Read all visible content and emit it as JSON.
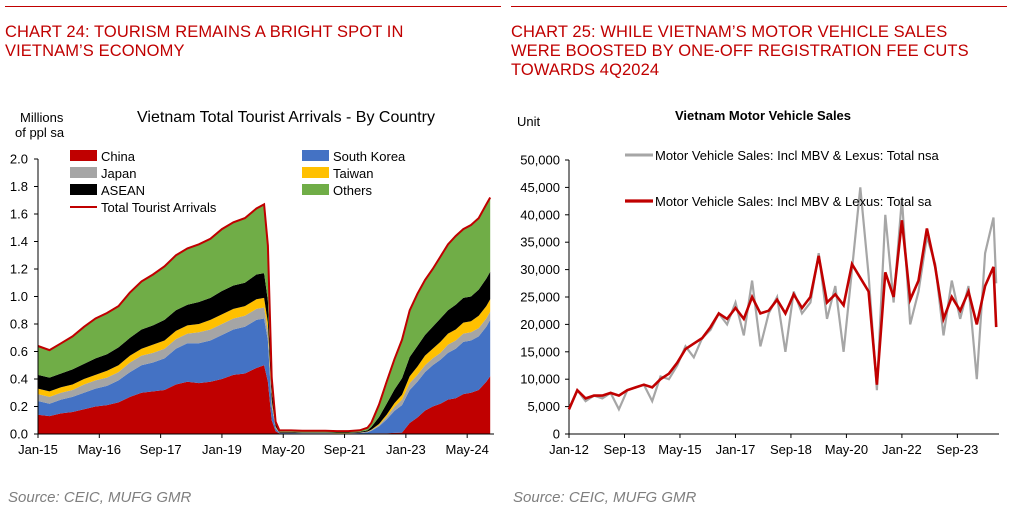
{
  "left_panel": {
    "heading_line1": "CHART 24: TOURISM REMAINS A BRIGHT SPOT IN",
    "heading_line2": "VIETNAM’S ECONOMY",
    "source": "Source: CEIC, MUFG GMR"
  },
  "right_panel": {
    "heading_line1": "CHART 25: WHILE VIETNAM’S MOTOR VEHICLE SALES",
    "heading_line2": "WERE BOOSTED BY ONE-OFF REGISTRATION FEE CUTS",
    "heading_line3": "TOWARDS 4Q2024",
    "source": "Source: CEIC, MUFG GMR"
  },
  "colors": {
    "heading_red": "#c00000",
    "china": "#c00000",
    "south_korea": "#4472c4",
    "japan": "#a5a5a5",
    "taiwan": "#ffc000",
    "asean": "#000000",
    "others": "#70ad47",
    "total_line": "#c00000",
    "nsa_line": "#a6a6a6",
    "sa_line": "#c00000"
  },
  "chart_data": [
    {
      "type": "area",
      "stacked": true,
      "title": "Vietnam Total Tourist Arrivals - By Country",
      "ylabel_line1": "Millions",
      "ylabel_line2": "of ppl sa",
      "ylim": [
        0,
        2.0
      ],
      "yticks": [
        "0.0",
        "0.2",
        "0.4",
        "0.6",
        "0.8",
        "1.0",
        "1.2",
        "1.4",
        "1.6",
        "1.8",
        "2.0"
      ],
      "xticks": [
        "Jan-15",
        "May-16",
        "Sep-17",
        "Jan-19",
        "May-20",
        "Sep-21",
        "Jan-23",
        "May-24"
      ],
      "legend": {
        "china": "China",
        "japan": "Japan",
        "asean": "ASEAN",
        "total": "Total Tourist Arrivals",
        "south_korea": "South Korea",
        "taiwan": "Taiwan",
        "others": "Others"
      },
      "x_dates": [
        "Jan-15",
        "Apr-15",
        "Jul-15",
        "Oct-15",
        "Jan-16",
        "Apr-16",
        "Jul-16",
        "Oct-16",
        "Jan-17",
        "Apr-17",
        "Jul-17",
        "Oct-17",
        "Jan-18",
        "Apr-18",
        "Jul-18",
        "Oct-18",
        "Jan-19",
        "Apr-19",
        "Jul-19",
        "Oct-19",
        "Dec-19",
        "Jan-20",
        "Feb-20",
        "Mar-20",
        "Apr-20",
        "Jul-20",
        "Oct-20",
        "Jan-21",
        "Apr-21",
        "Jul-21",
        "Oct-21",
        "Jan-22",
        "Mar-22",
        "Apr-22",
        "Jun-22",
        "Aug-22",
        "Oct-22",
        "Dec-22",
        "Feb-23",
        "Apr-23",
        "Jun-23",
        "Aug-23",
        "Oct-23",
        "Dec-23",
        "Feb-24",
        "Apr-24",
        "Jun-24",
        "Aug-24",
        "Oct-24",
        "Nov-24"
      ],
      "series": [
        {
          "key": "china",
          "name": "China",
          "values": [
            0.14,
            0.13,
            0.15,
            0.16,
            0.18,
            0.2,
            0.21,
            0.23,
            0.27,
            0.3,
            0.31,
            0.32,
            0.36,
            0.38,
            0.37,
            0.38,
            0.4,
            0.43,
            0.44,
            0.48,
            0.5,
            0.38,
            0.1,
            0.02,
            0.004,
            0.004,
            0.003,
            0.003,
            0.003,
            0.002,
            0.002,
            0.003,
            0.003,
            0.004,
            0.005,
            0.006,
            0.008,
            0.01,
            0.08,
            0.12,
            0.17,
            0.2,
            0.22,
            0.25,
            0.26,
            0.29,
            0.3,
            0.32,
            0.38,
            0.42
          ]
        },
        {
          "key": "south_korea",
          "name": "South Korea",
          "values": [
            0.1,
            0.09,
            0.1,
            0.11,
            0.12,
            0.13,
            0.14,
            0.16,
            0.18,
            0.2,
            0.21,
            0.23,
            0.26,
            0.28,
            0.29,
            0.3,
            0.32,
            0.33,
            0.34,
            0.35,
            0.34,
            0.3,
            0.1,
            0.02,
            0.003,
            0.003,
            0.003,
            0.003,
            0.003,
            0.002,
            0.002,
            0.004,
            0.01,
            0.02,
            0.05,
            0.1,
            0.16,
            0.2,
            0.24,
            0.26,
            0.28,
            0.3,
            0.32,
            0.34,
            0.36,
            0.38,
            0.38,
            0.39,
            0.4,
            0.41
          ]
        },
        {
          "key": "japan",
          "name": "Japan",
          "values": [
            0.05,
            0.05,
            0.05,
            0.05,
            0.06,
            0.06,
            0.06,
            0.06,
            0.07,
            0.07,
            0.07,
            0.07,
            0.07,
            0.07,
            0.08,
            0.08,
            0.08,
            0.08,
            0.08,
            0.08,
            0.08,
            0.07,
            0.03,
            0.01,
            0.002,
            0.002,
            0.002,
            0.002,
            0.002,
            0.002,
            0.002,
            0.002,
            0.003,
            0.005,
            0.01,
            0.02,
            0.03,
            0.04,
            0.05,
            0.05,
            0.05,
            0.05,
            0.05,
            0.06,
            0.06,
            0.06,
            0.06,
            0.06,
            0.06,
            0.06
          ]
        },
        {
          "key": "taiwan",
          "name": "Taiwan",
          "values": [
            0.04,
            0.04,
            0.04,
            0.04,
            0.04,
            0.04,
            0.05,
            0.05,
            0.05,
            0.05,
            0.06,
            0.06,
            0.06,
            0.06,
            0.06,
            0.07,
            0.07,
            0.07,
            0.07,
            0.07,
            0.07,
            0.06,
            0.02,
            0.005,
            0.001,
            0.001,
            0.001,
            0.001,
            0.001,
            0.001,
            0.001,
            0.001,
            0.002,
            0.003,
            0.008,
            0.015,
            0.025,
            0.035,
            0.05,
            0.06,
            0.07,
            0.07,
            0.08,
            0.08,
            0.08,
            0.08,
            0.08,
            0.09,
            0.09,
            0.09
          ]
        },
        {
          "key": "asean",
          "name": "ASEAN",
          "values": [
            0.1,
            0.1,
            0.1,
            0.11,
            0.11,
            0.12,
            0.12,
            0.13,
            0.13,
            0.14,
            0.14,
            0.15,
            0.15,
            0.15,
            0.16,
            0.16,
            0.17,
            0.17,
            0.17,
            0.18,
            0.18,
            0.16,
            0.06,
            0.02,
            0.005,
            0.005,
            0.004,
            0.004,
            0.004,
            0.004,
            0.004,
            0.005,
            0.008,
            0.02,
            0.05,
            0.08,
            0.1,
            0.12,
            0.14,
            0.15,
            0.15,
            0.16,
            0.17,
            0.17,
            0.18,
            0.18,
            0.18,
            0.19,
            0.2,
            0.2
          ]
        },
        {
          "key": "others",
          "name": "Others",
          "values": [
            0.21,
            0.2,
            0.22,
            0.24,
            0.27,
            0.29,
            0.3,
            0.3,
            0.33,
            0.35,
            0.37,
            0.39,
            0.4,
            0.41,
            0.42,
            0.43,
            0.45,
            0.46,
            0.47,
            0.48,
            0.5,
            0.4,
            0.1,
            0.03,
            0.01,
            0.01,
            0.01,
            0.01,
            0.01,
            0.01,
            0.01,
            0.012,
            0.02,
            0.03,
            0.08,
            0.14,
            0.22,
            0.28,
            0.34,
            0.38,
            0.4,
            0.42,
            0.45,
            0.48,
            0.5,
            0.5,
            0.52,
            0.52,
            0.54,
            0.54
          ]
        }
      ],
      "total_tourist_arrivals": [
        0.64,
        0.61,
        0.66,
        0.71,
        0.78,
        0.84,
        0.88,
        0.93,
        1.03,
        1.11,
        1.16,
        1.22,
        1.3,
        1.35,
        1.38,
        1.42,
        1.49,
        1.54,
        1.57,
        1.64,
        1.67,
        1.37,
        0.41,
        0.09,
        0.026,
        0.026,
        0.023,
        0.023,
        0.023,
        0.021,
        0.021,
        0.027,
        0.046,
        0.082,
        0.213,
        0.381,
        0.543,
        0.685,
        0.9,
        1.02,
        1.12,
        1.2,
        1.29,
        1.38,
        1.44,
        1.49,
        1.52,
        1.57,
        1.67,
        1.72
      ]
    },
    {
      "type": "line",
      "title": "Vietnam Motor Vehicle Sales",
      "ylabel": "Unit",
      "ylim": [
        0,
        50000
      ],
      "yticks": [
        "0",
        "5,000",
        "10,000",
        "15,000",
        "20,000",
        "25,000",
        "30,000",
        "35,000",
        "40,000",
        "45,000",
        "50,000"
      ],
      "xticks": [
        "Jan-12",
        "Sep-13",
        "May-15",
        "Jan-17",
        "Sep-18",
        "May-20",
        "Jan-22",
        "Sep-23"
      ],
      "x_dates": [
        "Jan-12",
        "Apr-12",
        "Jul-12",
        "Oct-12",
        "Jan-13",
        "Apr-13",
        "Jul-13",
        "Oct-13",
        "Jan-14",
        "Apr-14",
        "Jul-14",
        "Oct-14",
        "Jan-15",
        "Apr-15",
        "Jul-15",
        "Oct-15",
        "Jan-16",
        "Apr-16",
        "Jul-16",
        "Oct-16",
        "Jan-17",
        "Apr-17",
        "Jul-17",
        "Oct-17",
        "Jan-18",
        "Apr-18",
        "Jul-18",
        "Oct-18",
        "Jan-19",
        "Apr-19",
        "Jul-19",
        "Oct-19",
        "Jan-20",
        "Apr-20",
        "Jul-20",
        "Oct-20",
        "Jan-21",
        "Apr-21",
        "Jul-21",
        "Oct-21",
        "Jan-22",
        "Apr-22",
        "Jul-22",
        "Oct-22",
        "Jan-23",
        "Apr-23",
        "Jul-23",
        "Oct-23",
        "Jan-24",
        "Apr-24",
        "Jul-24",
        "Oct-24",
        "Nov-24"
      ],
      "series": [
        {
          "key": "nsa",
          "name": "Motor Vehicle Sales: Incl MBV & Lexus: Total nsa",
          "values": [
            4500,
            8000,
            6000,
            7000,
            6500,
            7500,
            4500,
            8000,
            8500,
            9000,
            6000,
            10500,
            10000,
            12500,
            16000,
            14000,
            17500,
            19000,
            22000,
            20000,
            24000,
            18000,
            28000,
            16000,
            22000,
            25000,
            15000,
            26000,
            22000,
            24000,
            33000,
            21000,
            27000,
            15000,
            30000,
            45000,
            29000,
            8000,
            40000,
            24000,
            43000,
            20000,
            26000,
            36000,
            31000,
            18000,
            28000,
            21000,
            27000,
            10000,
            33000,
            39500,
            27500
          ]
        },
        {
          "key": "sa",
          "name": "Motor Vehicle Sales: Incl MBV & Lexus: Total sa",
          "values": [
            4500,
            8000,
            6500,
            7000,
            7000,
            7500,
            7000,
            8000,
            8500,
            9000,
            8500,
            10000,
            11000,
            13000,
            15500,
            16500,
            17500,
            19500,
            22000,
            21000,
            23000,
            21000,
            25000,
            22000,
            22500,
            24500,
            22000,
            25500,
            23000,
            25000,
            32500,
            24000,
            25500,
            23500,
            31000,
            28500,
            26000,
            9000,
            29500,
            25000,
            39000,
            24500,
            28000,
            37500,
            30500,
            21000,
            25000,
            22500,
            26000,
            20000,
            27000,
            30500,
            19500
          ]
        }
      ]
    }
  ]
}
